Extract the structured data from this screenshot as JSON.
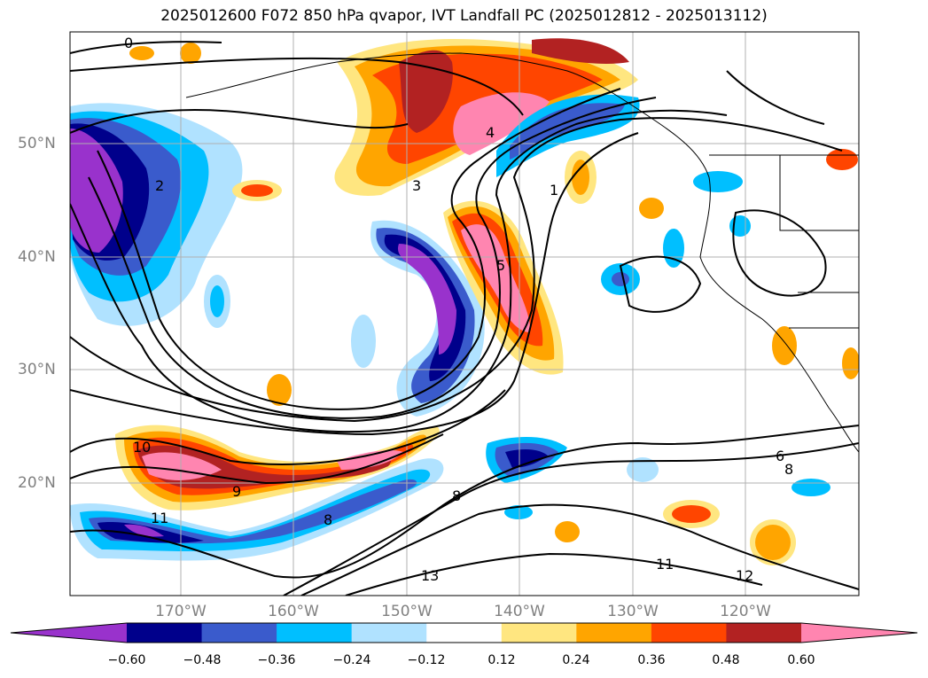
{
  "title": "2025012600 F072 850 hPa qvapor, IVT Landfall PC (2025012812 - 2025013112)",
  "lat_labels": [
    "50°N",
    "40°N",
    "30°N",
    "20°N"
  ],
  "lon_labels": [
    "170°W",
    "160°W",
    "150°W",
    "140°W",
    "130°W",
    "120°W"
  ],
  "colorbar": {
    "ticks": [
      "−0.60",
      "−0.48",
      "−0.36",
      "−0.24",
      "−0.12",
      "0.12",
      "0.24",
      "0.36",
      "0.48",
      "0.60"
    ],
    "colors": [
      "#9932cc",
      "#00008b",
      "#3a5bcc",
      "#00bfff",
      "#b0e2ff",
      "#ffffff",
      "#ffe680",
      "#ffa500",
      "#ff4500",
      "#b22222",
      "#ff85b0"
    ]
  },
  "contour_labels": [
    "0",
    "1",
    "2",
    "3",
    "4",
    "5",
    "6",
    "8",
    "9",
    "10",
    "11",
    "12",
    "13"
  ]
}
